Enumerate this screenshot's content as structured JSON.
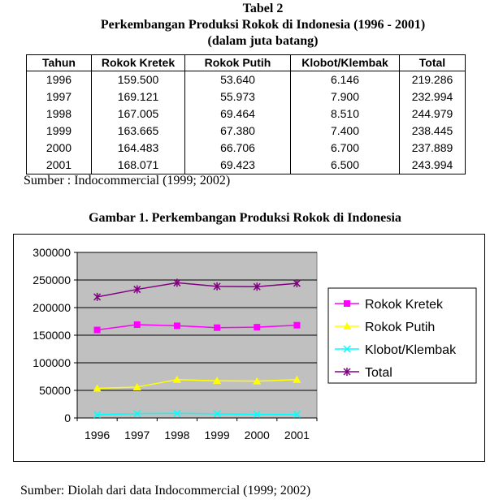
{
  "table": {
    "title_line1": "Tabel 2",
    "title_line2": "Perkembangan Produksi Rokok di Indonesia (1996 - 2001)",
    "title_line3": "(dalam juta batang)",
    "headers": [
      "Tahun",
      "Rokok Kretek",
      "Rokok Putih",
      "Klobot/Klembak",
      "Total"
    ],
    "rows": [
      [
        "1996",
        "159.500",
        "53.640",
        "6.146",
        "219.286"
      ],
      [
        "1997",
        "169.121",
        "55.973",
        "7.900",
        "232.994"
      ],
      [
        "1998",
        "167.005",
        "69.464",
        "8.510",
        "244.979"
      ],
      [
        "1999",
        "163.665",
        "67.380",
        "7.400",
        "238.445"
      ],
      [
        "2000",
        "164.483",
        "66.706",
        "6.700",
        "237.889"
      ],
      [
        "2001",
        "168.071",
        "69.423",
        "6.500",
        "243.994"
      ]
    ],
    "source": "Sumber : Indocommercial (1999; 2002)"
  },
  "figure": {
    "title": "Gambar 1. Perkembangan Produksi Rokok di Indonesia",
    "source": "Sumber: Diolah dari data Indocommercial (1999; 2002)"
  },
  "chart_data": {
    "type": "line",
    "categories": [
      "1996",
      "1997",
      "1998",
      "1999",
      "2000",
      "2001"
    ],
    "ylim": [
      0,
      300000
    ],
    "yticks": [
      "0",
      "50000",
      "100000",
      "150000",
      "200000",
      "250000",
      "300000"
    ],
    "grid": true,
    "plot_background": "#c0c0c0",
    "legend_position": "right",
    "series": [
      {
        "name": "Rokok Kretek",
        "color": "#ff00ff",
        "marker": "square",
        "values": [
          159500,
          169121,
          167005,
          163665,
          164483,
          168071
        ]
      },
      {
        "name": "Rokok Putih",
        "color": "#ffff00",
        "marker": "triangle",
        "values": [
          53640,
          55973,
          69464,
          67380,
          66706,
          69423
        ]
      },
      {
        "name": "Klobot/Klembak",
        "color": "#00ffff",
        "marker": "x",
        "values": [
          6146,
          7900,
          8510,
          7400,
          6700,
          6500
        ]
      },
      {
        "name": "Total",
        "color": "#800080",
        "marker": "star",
        "values": [
          219286,
          232994,
          244979,
          238445,
          237889,
          243994
        ]
      }
    ]
  }
}
